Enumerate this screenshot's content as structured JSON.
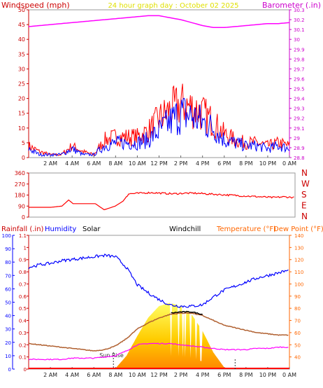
{
  "header": {
    "left_title": "Windspeed (mph)",
    "center_title": "24 hour graph day : October 02 2025",
    "right_title": "Barometer (.in)"
  },
  "colors": {
    "wind_gust": "#ff0000",
    "wind_avg": "#0000ff",
    "barometer": "#ff00ff",
    "direction": "#ff0000",
    "humidity": "#0000ff",
    "temperature": "#b06030",
    "windchill": "#000000",
    "dewpoint": "#ff00ff",
    "solar": "#ffcc00",
    "rain": "#ff0000",
    "axis_red": "#cc0000",
    "axis_orange": "#ff6600",
    "axis_purple": "#cc00cc",
    "title_yellow": "#e0e000"
  },
  "chart_data": [
    {
      "type": "line",
      "title": "",
      "x_ticks": [
        "2 AM",
        "4 AM",
        "6 AM",
        "8 AM",
        "10 AM",
        "12 PM",
        "2 PM",
        "4 PM",
        "6 PM",
        "8 PM",
        "10 PM",
        "0 AM"
      ],
      "left_axis": {
        "label": "Windspeed (mph)",
        "range": [
          0,
          50
        ],
        "ticks": [
          "0",
          "5",
          "10",
          "15",
          "20",
          "25",
          "30",
          "35",
          "40",
          "45",
          "50"
        ]
      },
      "right_axis": {
        "label": "Barometer (.in)",
        "range": [
          28.8,
          30.3
        ],
        "ticks": [
          "28.8",
          "28.9",
          "29",
          "29.1",
          "29.2",
          "29.3",
          "29.4",
          "29.5",
          "29.6",
          "29.7",
          "29.8",
          "29.9",
          "30",
          "30.1",
          "30.2",
          "30.3"
        ]
      },
      "x_hours": [
        0,
        1,
        2,
        3,
        4,
        5,
        6,
        7,
        8,
        9,
        10,
        11,
        12,
        13,
        14,
        15,
        16,
        17,
        18,
        19,
        20,
        21,
        22,
        23,
        24
      ],
      "series": [
        {
          "name": "Windspeed (mph)",
          "values": [
            3,
            1,
            1,
            1,
            3,
            1,
            1,
            4,
            5,
            5,
            5,
            6,
            9,
            12,
            15,
            14,
            12,
            10,
            6,
            5,
            4,
            4,
            3,
            4,
            3
          ]
        },
        {
          "name": "Wind gust",
          "values": [
            4,
            2,
            1,
            1,
            4,
            2,
            1,
            6,
            7,
            7,
            7,
            9,
            13,
            16,
            18,
            17,
            15,
            12,
            8,
            6,
            5,
            5,
            4,
            5,
            4
          ]
        },
        {
          "name": "Barometer (.in)",
          "values": [
            30.13,
            30.14,
            30.15,
            30.16,
            30.17,
            30.18,
            30.19,
            30.2,
            30.21,
            30.22,
            30.23,
            30.24,
            30.24,
            30.22,
            30.2,
            30.17,
            30.14,
            30.12,
            30.12,
            30.13,
            30.14,
            30.15,
            30.16,
            30.16,
            30.17
          ]
        }
      ]
    },
    {
      "type": "line",
      "title": "",
      "x_ticks": [
        "2 AM",
        "4 AM",
        "6 AM",
        "8 AM",
        "10 AM",
        "12 PM",
        "2 PM",
        "4 PM",
        "6 PM",
        "8 PM",
        "10 PM",
        "0 AM"
      ],
      "left_axis": {
        "label": "",
        "range": [
          0,
          360
        ],
        "ticks": [
          "0",
          "90",
          "180",
          "270",
          "360"
        ]
      },
      "right_labels": [
        "N",
        "W",
        "S",
        "E",
        "N"
      ],
      "x_hours": [
        0,
        1,
        2,
        3,
        3.6,
        4,
        5,
        6,
        6.8,
        7.8,
        8.5,
        9,
        10,
        11,
        12,
        13,
        14,
        15,
        16,
        17,
        18,
        19,
        20,
        21,
        22,
        23,
        24
      ],
      "series": [
        {
          "name": "Wind direction",
          "values": [
            80,
            80,
            80,
            90,
            140,
            110,
            110,
            110,
            60,
            90,
            130,
            190,
            195,
            200,
            195,
            190,
            195,
            195,
            190,
            185,
            180,
            175,
            170,
            165,
            160,
            165,
            160
          ]
        }
      ]
    },
    {
      "type": "line",
      "title": "",
      "x_ticks": [
        "2 AM",
        "4 AM",
        "6 AM",
        "8 AM",
        "10 AM",
        "12 PM",
        "2 PM",
        "4 PM",
        "6 PM",
        "8 PM",
        "10 PM",
        "0 AM"
      ],
      "headers": [
        "Rainfall (.in)",
        "Humidity",
        "Solar",
        "Windchill",
        "Temperature (°F)",
        "Dew Point (°F)"
      ],
      "left_axis_rain": {
        "label": "Rainfall (.in)",
        "range": [
          0,
          1.1
        ],
        "ticks": [
          "0",
          "0.1",
          "0.2",
          "0.3",
          "0.4",
          "0.5",
          "0.6",
          "0.7",
          "0.8",
          "0.9",
          "1",
          "1.1"
        ]
      },
      "left_axis_humidity": {
        "label": "Humidity",
        "range": [
          0,
          100
        ],
        "ticks": [
          "0",
          "10",
          "20",
          "30",
          "40",
          "50",
          "60",
          "70",
          "80",
          "90",
          "100"
        ]
      },
      "right_axis": {
        "label": "Temperature (°F)",
        "range": [
          30,
          140
        ],
        "ticks": [
          "40",
          "50",
          "60",
          "70",
          "80",
          "90",
          "100",
          "110",
          "120",
          "130",
          "140"
        ]
      },
      "x_hours": [
        0,
        1,
        2,
        3,
        4,
        5,
        6,
        7,
        8,
        9,
        10,
        11,
        12,
        13,
        14,
        15,
        16,
        17,
        18,
        19,
        20,
        21,
        22,
        23,
        24
      ],
      "series": [
        {
          "name": "Humidity",
          "values": [
            76,
            78,
            79,
            81,
            82,
            83,
            84,
            85,
            84,
            76,
            63,
            57,
            52,
            48,
            47,
            47,
            48,
            54,
            59,
            62,
            65,
            68,
            70,
            72,
            74
          ]
        },
        {
          "name": "Temperature (°F)",
          "values": [
            51,
            50,
            49,
            48,
            47,
            46,
            45,
            46,
            49,
            55,
            63,
            68,
            72,
            75,
            76,
            76,
            74,
            70,
            66,
            64,
            62,
            60,
            59,
            58,
            58
          ]
        },
        {
          "name": "Windchill",
          "values": [
            null,
            null,
            null,
            null,
            null,
            null,
            null,
            null,
            null,
            null,
            null,
            null,
            null,
            76,
            77,
            77,
            75,
            null,
            null,
            null,
            null,
            null,
            null,
            null,
            null
          ]
        },
        {
          "name": "Dew Point (°F)",
          "values": [
            38,
            38,
            38,
            38,
            39,
            39,
            39,
            40,
            41,
            45,
            50,
            51,
            51,
            51,
            50,
            49,
            48,
            47,
            46,
            46,
            46,
            47,
            47,
            48,
            48
          ]
        },
        {
          "name": "Solar",
          "values": [
            0,
            0,
            0,
            0,
            0,
            0,
            0,
            0,
            5,
            80,
            200,
            310,
            380,
            400,
            380,
            330,
            230,
            100,
            10,
            0,
            0,
            0,
            0,
            0,
            0
          ],
          "ylim": [
            0,
            500
          ]
        },
        {
          "name": "Rainfall (.in)",
          "values": [
            0,
            0,
            0,
            0,
            0,
            0,
            0,
            0,
            0,
            0,
            0,
            0,
            0,
            0,
            0,
            0,
            0,
            0,
            0,
            0,
            0,
            0,
            0,
            0,
            0
          ]
        }
      ],
      "annotations": [
        "Sun Rise"
      ]
    }
  ]
}
